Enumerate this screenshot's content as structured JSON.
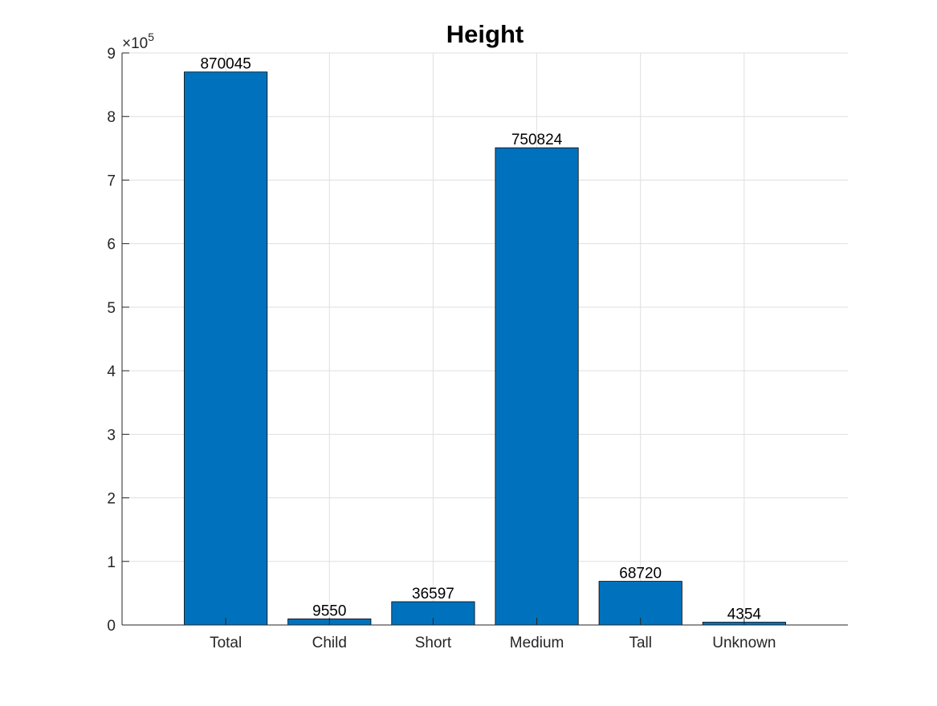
{
  "chart_data": {
    "type": "bar",
    "title": "Height",
    "categories": [
      "Total",
      "Child",
      "Short",
      "Medium",
      "Tall",
      "Unknown"
    ],
    "values": [
      870045,
      9550,
      36597,
      750824,
      68720,
      4354
    ],
    "data_labels": [
      "870045",
      "9550",
      "36597",
      "750824",
      "68720",
      "4354"
    ],
    "xlabel": "",
    "ylabel": "",
    "ylim": [
      0,
      900000
    ],
    "xlim": [
      0,
      7
    ],
    "y_ticks": [
      0,
      100000,
      200000,
      300000,
      400000,
      500000,
      600000,
      700000,
      800000,
      900000
    ],
    "y_tick_labels": [
      "0",
      "1",
      "2",
      "3",
      "4",
      "5",
      "6",
      "7",
      "8",
      "9"
    ],
    "y_exponent_label": {
      "prefix": "×10",
      "exponent": "5"
    },
    "grid": true,
    "bar_color": "#0072BD",
    "grid_color": "#dfdfdf",
    "axis_color": "#262626"
  }
}
